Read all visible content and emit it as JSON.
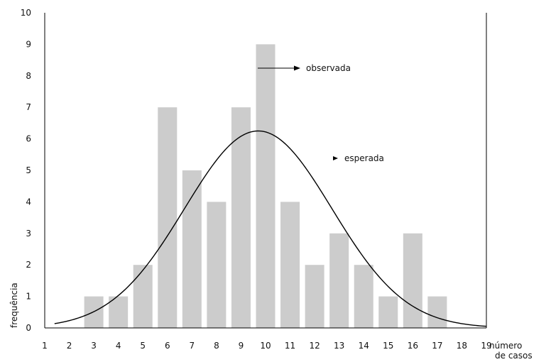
{
  "chart_data": {
    "type": "bar",
    "xlabel": "número de casos",
    "ylabel": "frequência",
    "xlim": [
      1,
      19
    ],
    "ylim": [
      0,
      10
    ],
    "x_ticks": [
      1,
      2,
      3,
      4,
      5,
      6,
      7,
      8,
      9,
      10,
      11,
      12,
      13,
      14,
      15,
      16,
      17,
      18,
      19
    ],
    "y_ticks": [
      0,
      1,
      2,
      3,
      4,
      5,
      6,
      7,
      8,
      9,
      10
    ],
    "series": [
      {
        "name": "observada",
        "type": "bar",
        "x": [
          3,
          4,
          5,
          6,
          7,
          8,
          9,
          10,
          11,
          12,
          13,
          14,
          15,
          16,
          17
        ],
        "values": [
          1,
          1,
          2,
          7,
          5,
          4,
          7,
          9,
          4,
          2,
          3,
          2,
          1,
          3,
          1
        ]
      },
      {
        "name": "esperada",
        "type": "line",
        "curve": "normal",
        "mean": 9.7,
        "sd": 3.0,
        "peak": 6.25,
        "x_range": [
          1.4,
          19.0
        ]
      }
    ],
    "annotations": [
      {
        "text": "observada",
        "arrow": true
      },
      {
        "text": "esperada",
        "arrow": true
      }
    ],
    "grid": false,
    "bar_color": "#cccccc",
    "line_color": "#000000"
  }
}
